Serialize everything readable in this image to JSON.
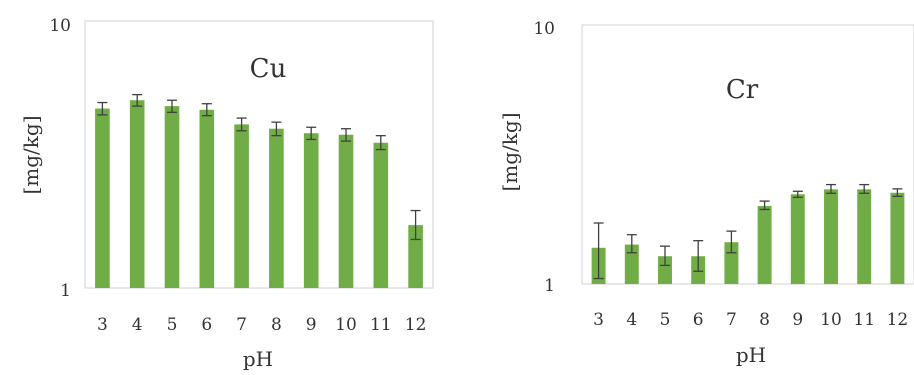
{
  "chart_data": [
    {
      "type": "bar",
      "title": "Cu",
      "xlabel": "pH",
      "ylabel": "[mg/kg]",
      "yscale": "log",
      "ylim": [
        1,
        10
      ],
      "yticks": [
        "1",
        "10"
      ],
      "grid": false,
      "color": "#70AD47",
      "errorbar_color": "#404040",
      "categories": [
        "3",
        "4",
        "5",
        "6",
        "7",
        "8",
        "9",
        "10",
        "11",
        "12"
      ],
      "values": [
        4.7,
        5.05,
        4.8,
        4.65,
        4.1,
        3.95,
        3.8,
        3.75,
        3.5,
        1.72
      ],
      "err_low": [
        4.45,
        4.8,
        4.55,
        4.42,
        3.88,
        3.72,
        3.6,
        3.55,
        3.3,
        1.52
      ],
      "err_high": [
        4.95,
        5.3,
        5.05,
        4.9,
        4.33,
        4.18,
        4.0,
        3.95,
        3.72,
        1.95
      ]
    },
    {
      "type": "bar",
      "title": "Cr",
      "xlabel": "pH",
      "ylabel": "[mg/kg]",
      "yscale": "log",
      "ylim": [
        1,
        10
      ],
      "yticks": [
        "1",
        "10"
      ],
      "grid": false,
      "color": "#70AD47",
      "errorbar_color": "#404040",
      "categories": [
        "3",
        "4",
        "5",
        "6",
        "7",
        "8",
        "9",
        "10",
        "11",
        "12"
      ],
      "values": [
        1.38,
        1.42,
        1.28,
        1.28,
        1.45,
        2.0,
        2.22,
        2.32,
        2.32,
        2.25
      ],
      "err_low": [
        1.05,
        1.32,
        1.18,
        1.12,
        1.32,
        1.94,
        2.16,
        2.24,
        2.24,
        2.18
      ],
      "err_high": [
        1.72,
        1.55,
        1.4,
        1.47,
        1.6,
        2.09,
        2.28,
        2.42,
        2.42,
        2.33
      ]
    }
  ]
}
